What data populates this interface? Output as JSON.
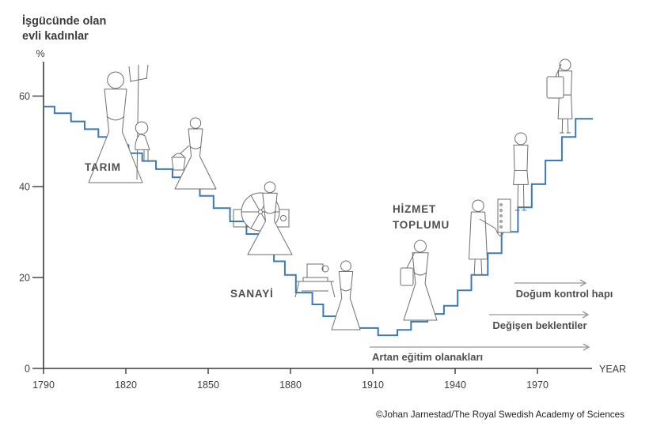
{
  "title": {
    "line1": "İşgücünde olan",
    "line2": "evli kadınlar"
  },
  "axes": {
    "y_unit": "%",
    "x_label": "YEAR"
  },
  "era_labels": {
    "agriculture": "TARIM",
    "industry": "SANAYİ",
    "service_line1": "HİZMET",
    "service_line2": "TOPLUMU"
  },
  "annotations": [
    {
      "label": "Doğum kontrol hapı"
    },
    {
      "label": "Değişen beklentiler"
    },
    {
      "label": "Artan eğitim olanakları"
    }
  ],
  "credit": "©Johan Jarnestad/The Royal Swedish Academy of Sciences",
  "colors": {
    "line": "#3c7ab3",
    "axis": "#3a3a3a",
    "text": "#3c3c3c",
    "era_label": "#4f4f4f",
    "arrow": "#969696",
    "figure": "#6e6e6e",
    "credit": "#1e1e1e"
  },
  "figures": [
    "farm-woman-with-pitchfork",
    "seated-girl",
    "woman-carrying-bucket",
    "woman-at-spinning-wheel",
    "sewing-machine",
    "woman-standing-long-dress",
    "woman-with-shoulder-bag",
    "telephone-operator",
    "woman-in-suit",
    "woman-with-briefcase"
  ],
  "chart_data": {
    "type": "line",
    "style": "staircase (step-after)",
    "title": "İşgücünde olan evli kadınlar (married women in the labour force)",
    "xlabel": "YEAR",
    "ylabel": "%",
    "xlim": [
      1790,
      1995
    ],
    "ylim": [
      0,
      68
    ],
    "x_ticks": [
      1790,
      1820,
      1850,
      1880,
      1910,
      1940,
      1970
    ],
    "y_ticks": [
      0,
      20,
      40,
      60
    ],
    "grid": false,
    "end_year": 1990,
    "steps": [
      [
        1790,
        57.7
      ],
      [
        1794,
        56.2
      ],
      [
        1800,
        54.4
      ],
      [
        1805,
        52.7
      ],
      [
        1810,
        51.0
      ],
      [
        1815,
        49.2
      ],
      [
        1821,
        47.4
      ],
      [
        1826,
        45.7
      ],
      [
        1831,
        43.9
      ],
      [
        1837,
        42.1
      ],
      [
        1842,
        40.3
      ],
      [
        1847,
        38.0
      ],
      [
        1852,
        35.3
      ],
      [
        1858,
        32.4
      ],
      [
        1864,
        29.6
      ],
      [
        1869,
        26.5
      ],
      [
        1874,
        23.6
      ],
      [
        1878,
        20.6
      ],
      [
        1882,
        16.7
      ],
      [
        1888,
        14.1
      ],
      [
        1892,
        11.5
      ],
      [
        1903,
        8.9
      ],
      [
        1912,
        7.3
      ],
      [
        1919,
        8.5
      ],
      [
        1924,
        10.3
      ],
      [
        1930,
        12.0
      ],
      [
        1936,
        13.8
      ],
      [
        1941,
        17.2
      ],
      [
        1946,
        20.6
      ],
      [
        1952,
        25.4
      ],
      [
        1957,
        30.1
      ],
      [
        1963,
        35.5
      ],
      [
        1968,
        40.6
      ],
      [
        1973,
        45.8
      ],
      [
        1979,
        51.0
      ],
      [
        1984,
        55.0
      ]
    ]
  }
}
